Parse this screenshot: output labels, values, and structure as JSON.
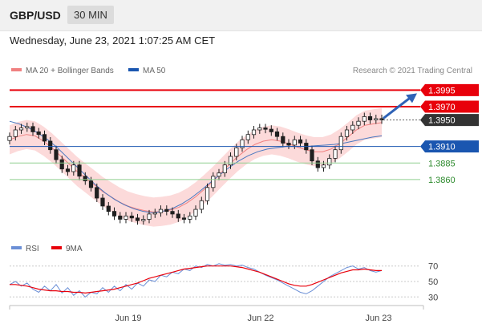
{
  "header": {
    "pair": "GBP/USD",
    "timeframe": "30 MIN"
  },
  "timestamp": "Wednesday, June 23, 2021 1:07:25 AM CET",
  "colors": {
    "resistance": "#e8000b",
    "current": "#333333",
    "pivot": "#1a56b0",
    "support": "#2c8a2c",
    "band_fill": "#fbd4d4",
    "ma20": "#f08080",
    "ma50": "#4a78c0",
    "rsi": "#6b8fd6",
    "rsi_ma": "#e8000b",
    "candle": "#1f1f1f",
    "forecast_arrow": "#2f62b6"
  },
  "chart_data": [
    {
      "type": "candlestick",
      "legend": [
        {
          "name": "MA 20 + Bollinger Bands",
          "color": "#f08080"
        },
        {
          "name": "MA 50",
          "color": "#1a56b0"
        }
      ],
      "credit": "Research © 2021 Trading Central",
      "ylim": [
        1.378,
        1.401
      ],
      "price_levels": [
        {
          "label": "1.3995",
          "value": 1.3995,
          "kind": "resistance"
        },
        {
          "label": "1.3970",
          "value": 1.397,
          "kind": "resistance"
        },
        {
          "label": "1.3950",
          "value": 1.395,
          "kind": "current"
        },
        {
          "label": "1.3910",
          "value": 1.391,
          "kind": "pivot"
        },
        {
          "label": "1.3885",
          "value": 1.3885,
          "kind": "support"
        },
        {
          "label": "1.3860",
          "value": 1.386,
          "kind": "support"
        }
      ],
      "close": [
        1.3925,
        1.3935,
        1.3938,
        1.394,
        1.3932,
        1.3928,
        1.3918,
        1.3905,
        1.389,
        1.3876,
        1.3872,
        1.3882,
        1.3865,
        1.3858,
        1.3848,
        1.3832,
        1.382,
        1.3812,
        1.3805,
        1.38,
        1.3805,
        1.3802,
        1.3798,
        1.38,
        1.3808,
        1.381,
        1.3815,
        1.3812,
        1.3808,
        1.3802,
        1.38,
        1.3805,
        1.3815,
        1.3828,
        1.3848,
        1.3865,
        1.387,
        1.3882,
        1.3895,
        1.3908,
        1.392,
        1.3928,
        1.3935,
        1.3938,
        1.3936,
        1.3932,
        1.3925,
        1.3915,
        1.3912,
        1.392,
        1.3915,
        1.3905,
        1.3888,
        1.3878,
        1.3882,
        1.3892,
        1.3905,
        1.3925,
        1.3935,
        1.3942,
        1.3948,
        1.3955,
        1.395,
        1.3952,
        1.395
      ],
      "ma20": [
        1.392,
        1.3925,
        1.3928,
        1.3926,
        1.3918,
        1.3908,
        1.3896,
        1.3884,
        1.3872,
        1.3862,
        1.3852,
        1.3842,
        1.3834,
        1.3826,
        1.382,
        1.3816,
        1.3813,
        1.3811,
        1.3812,
        1.3814,
        1.3818,
        1.3825,
        1.3834,
        1.3845,
        1.3857,
        1.387,
        1.3883,
        1.3895,
        1.3905,
        1.3913,
        1.3918,
        1.392,
        1.3918,
        1.3914,
        1.3909,
        1.3905,
        1.3902,
        1.3902,
        1.3906,
        1.3914,
        1.3924,
        1.3935,
        1.3942,
        1.3944,
        1.3946
      ],
      "ma50": [
        1.3948,
        1.3944,
        1.3938,
        1.393,
        1.392,
        1.3908,
        1.3894,
        1.388,
        1.3866,
        1.3852,
        1.384,
        1.383,
        1.3822,
        1.3816,
        1.3812,
        1.381,
        1.3812,
        1.3816,
        1.3823,
        1.3832,
        1.3843,
        1.3855,
        1.3867,
        1.3878,
        1.3888,
        1.3896,
        1.3902,
        1.3906,
        1.3908,
        1.391,
        1.391,
        1.391,
        1.3911,
        1.3912,
        1.3913,
        1.3915,
        1.3918,
        1.3921,
        1.3924,
        1.3926
      ],
      "band_width": 0.0022,
      "forecast": {
        "from": 1.395,
        "to": 1.3995
      }
    },
    {
      "type": "line",
      "legend": [
        {
          "name": "RSI",
          "color": "#6b8fd6"
        },
        {
          "name": "9MA",
          "color": "#e8000b"
        }
      ],
      "ylim": [
        22,
        80
      ],
      "y_ticks": [
        "70",
        "50",
        "30"
      ],
      "rsi": [
        46,
        50,
        44,
        48,
        40,
        36,
        44,
        38,
        46,
        35,
        42,
        32,
        38,
        30,
        36,
        34,
        42,
        36,
        44,
        38,
        46,
        40,
        48,
        44,
        52,
        50,
        58,
        56,
        62,
        60,
        66,
        64,
        70,
        68,
        72,
        70,
        73,
        71,
        72,
        70,
        71,
        68,
        66,
        62,
        58,
        55,
        52,
        48,
        44,
        40,
        36,
        34,
        38,
        44,
        50,
        56,
        60,
        64,
        68,
        70,
        66,
        68,
        64,
        62,
        64
      ],
      "rsi_ma": [
        46,
        46,
        45,
        44,
        42,
        40,
        39,
        38,
        38,
        37,
        37,
        36,
        36,
        35,
        36,
        37,
        38,
        39,
        40,
        42,
        44,
        46,
        48,
        51,
        54,
        56,
        58,
        60,
        62,
        64,
        66,
        67,
        68,
        69,
        70,
        70,
        70,
        70,
        70,
        69,
        68,
        66,
        64,
        62,
        59,
        56,
        53,
        50,
        47,
        45,
        44,
        44,
        46,
        49,
        52,
        55,
        58,
        61,
        63,
        65,
        65,
        66,
        65,
        64,
        64
      ]
    }
  ],
  "x_axis": {
    "tick_labels": [
      "Jun 19",
      "Jun 22",
      "Jun 23"
    ]
  }
}
